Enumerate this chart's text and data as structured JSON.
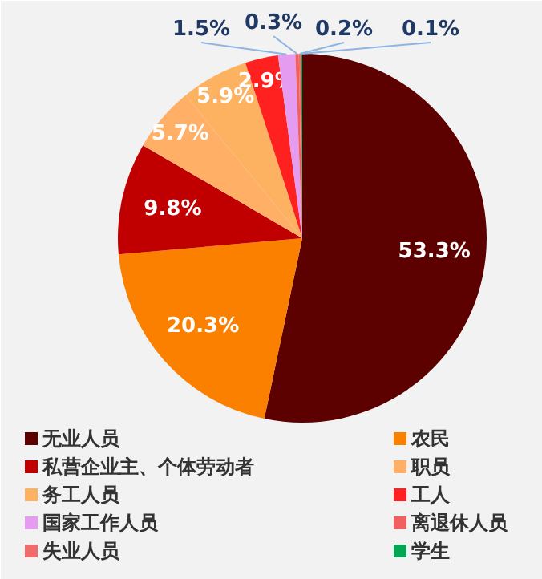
{
  "chart_data": {
    "type": "pie",
    "categories": [
      "无业人员",
      "农民",
      "私营企业主、个体劳动者",
      "职员",
      "务工人员",
      "工人",
      "国家工作人员",
      "离退休人员",
      "失业人员",
      "学生"
    ],
    "values": [
      53.3,
      20.3,
      9.8,
      5.7,
      5.9,
      2.9,
      1.5,
      0.3,
      0.2,
      0.1
    ],
    "value_labels": [
      "53.3%",
      "20.3%",
      "9.8%",
      "5.7%",
      "5.9%",
      "2.9%",
      "1.5%",
      "0.3%",
      "0.2%",
      "0.1%"
    ],
    "colors": [
      "#5c0000",
      "#fb8000",
      "#c00000",
      "#ffb066",
      "#fdb262",
      "#ff2020",
      "#e49bf0",
      "#f06060",
      "#f26b6b",
      "#00a651"
    ],
    "legend": "bottom"
  }
}
